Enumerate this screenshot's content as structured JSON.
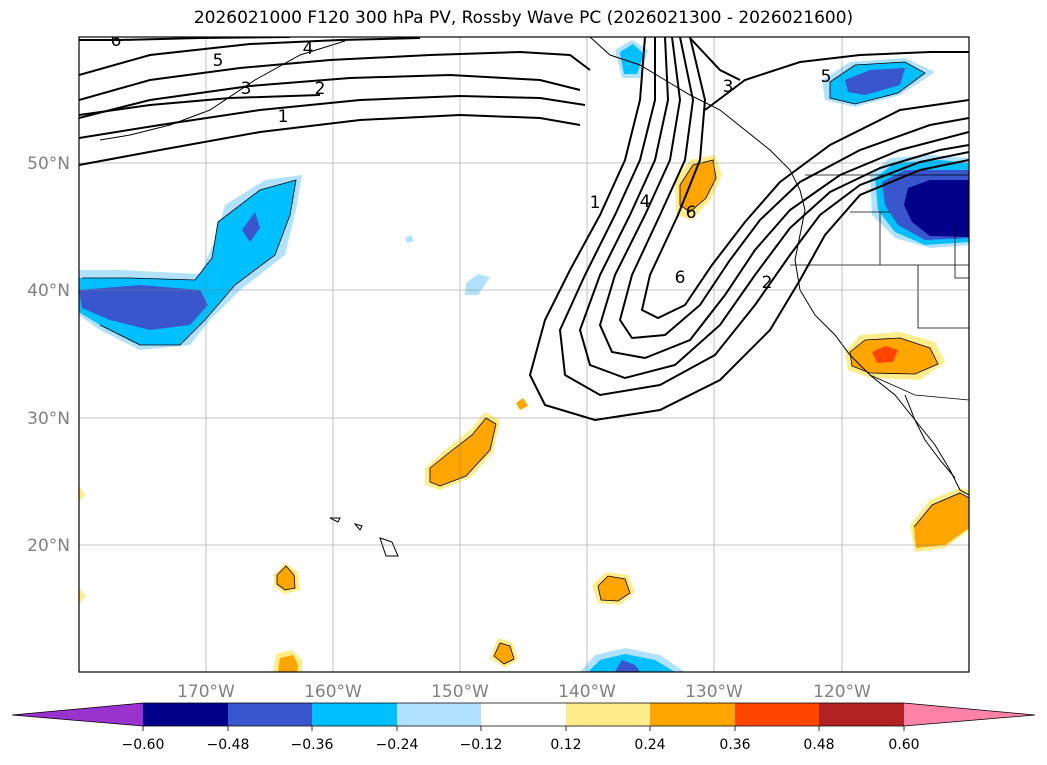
{
  "title": "2026021000 F120 300 hPa PV, Rossby Wave PC (2026021300 - 2026021600)",
  "map": {
    "lat_labels": [
      "50°N",
      "40°N",
      "30°N",
      "20°N"
    ],
    "lon_labels": [
      "170°W",
      "160°W",
      "150°W",
      "140°W",
      "130°W",
      "120°W"
    ],
    "contour_labels": [
      "6",
      "5",
      "4",
      "3",
      "2",
      "1",
      "1",
      "4",
      "6",
      "6",
      "3",
      "5",
      "2"
    ]
  },
  "colorbar": {
    "ticks": [
      "−0.60",
      "−0.48",
      "−0.36",
      "−0.24",
      "−0.12",
      "0.12",
      "0.24",
      "0.36",
      "0.48",
      "0.60"
    ],
    "colors": [
      "#9a32cd",
      "#00008b",
      "#3a56cc",
      "#00bfff",
      "#b0e2ff",
      "#ffffff",
      "#ffec8b",
      "#ffa500",
      "#ff4500",
      "#b22222",
      "#ff82ab"
    ]
  }
}
